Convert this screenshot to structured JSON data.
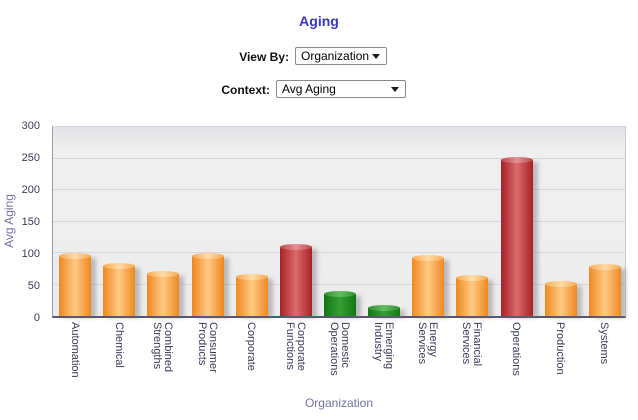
{
  "title": "Aging",
  "controls": {
    "view_by_label": "View By:",
    "view_by_value": "Organization",
    "context_label": "Context:",
    "context_value": "Avg Aging"
  },
  "colors": {
    "title_text": "#3535C1",
    "axis_title_text": "#7272A8",
    "tick_label_text": "#3A3A5C",
    "plot_background": "#ECECEC",
    "gridline": "#D6D6E2",
    "orange": {
      "edge": "#EE8822",
      "mid": "#FFC983",
      "cap_edge": "#F7A953",
      "cap_mid": "#FFDCA8"
    },
    "red": {
      "edge": "#A82026",
      "mid": "#D96B6D",
      "cap_edge": "#BE474C",
      "cap_mid": "#E39193"
    },
    "green": {
      "edge": "#137713",
      "mid": "#36A036",
      "cap_edge": "#2F8F2F",
      "cap_mid": "#63BB63"
    }
  },
  "chart_data": {
    "type": "bar",
    "title": "Aging",
    "xlabel": "Organization",
    "ylabel": "Avg Aging",
    "ylim": [
      0,
      300
    ],
    "yticks": [
      0,
      50,
      100,
      150,
      200,
      250,
      300
    ],
    "grid": true,
    "legend": false,
    "categories": [
      "Automation",
      "Chemical",
      "Combined Strengths",
      "Consumer Products",
      "Corporate",
      "Corporate Functions",
      "Domestic Operations",
      "Emerging Industry",
      "Energy Services",
      "Financial Services",
      "Operations",
      "Production",
      "Systems"
    ],
    "values": [
      95,
      80,
      67,
      96,
      62,
      109,
      35,
      13,
      92,
      60,
      248,
      51,
      78
    ],
    "bar_colors": [
      "orange",
      "orange",
      "orange",
      "orange",
      "orange",
      "red",
      "green",
      "green",
      "orange",
      "orange",
      "red",
      "orange",
      "orange"
    ]
  }
}
